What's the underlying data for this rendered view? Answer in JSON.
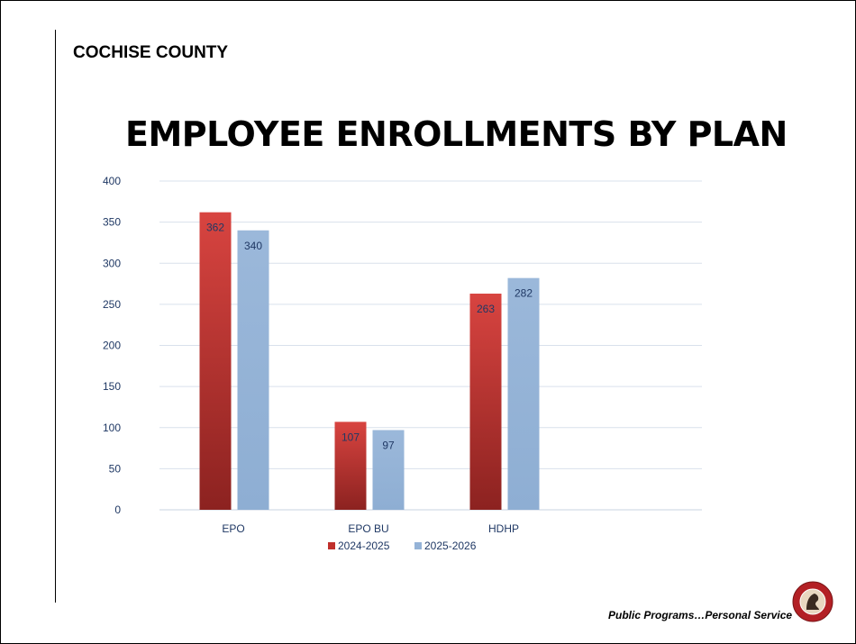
{
  "header": {
    "organization": "COCHISE COUNTY"
  },
  "footer": {
    "tagline": "Public Programs…Personal Service"
  },
  "colors": {
    "series_1": "#c0302c",
    "series_2": "#95b3d7",
    "gridline": "#d9e1ec",
    "tick_text": "#1f3864",
    "seal_outer": "#b32025",
    "seal_inner": "#e8d7c0"
  },
  "chart_data": {
    "type": "bar",
    "title": "EMPLOYEE ENROLLMENTS BY PLAN",
    "xlabel": "",
    "ylabel": "",
    "categories": [
      "EPO",
      "EPO BU",
      "HDHP"
    ],
    "series": [
      {
        "name": "2024-2025",
        "values": [
          362,
          107,
          263
        ],
        "color": "#c0302c"
      },
      {
        "name": "2025-2026",
        "values": [
          340,
          97,
          282
        ],
        "color": "#95b3d7"
      }
    ],
    "ylim": [
      0,
      400
    ],
    "yticks": [
      0,
      50,
      100,
      150,
      200,
      250,
      300,
      350,
      400
    ],
    "grid": true,
    "legend_position": "bottom",
    "data_labels": true
  }
}
